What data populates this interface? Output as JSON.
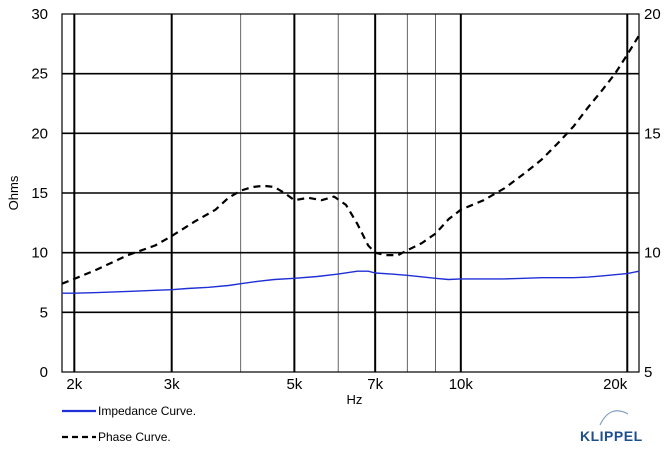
{
  "chart_data": {
    "type": "line",
    "title": "",
    "xlabel": "Hz",
    "ylabel": "Ohms",
    "x_scale": "log",
    "xlim": [
      1900,
      21000
    ],
    "ylim": [
      0,
      30
    ],
    "y2lim": [
      5,
      20
    ],
    "grid": true,
    "x_ticks": [
      {
        "value": 2000,
        "label": "2k"
      },
      {
        "value": 3000,
        "label": "3k"
      },
      {
        "value": 5000,
        "label": "5k"
      },
      {
        "value": 7000,
        "label": "7k"
      },
      {
        "value": 10000,
        "label": "10k"
      },
      {
        "value": 20000,
        "label": "20k"
      }
    ],
    "y_ticks": [
      {
        "value": 0,
        "label": "0"
      },
      {
        "value": 5,
        "label": "5"
      },
      {
        "value": 10,
        "label": "10"
      },
      {
        "value": 15,
        "label": "15"
      },
      {
        "value": 20,
        "label": "20"
      },
      {
        "value": 25,
        "label": "25"
      },
      {
        "value": 30,
        "label": "30"
      }
    ],
    "y2_ticks": [
      {
        "value": 5,
        "label": "5"
      },
      {
        "value": 10,
        "label": "10"
      },
      {
        "value": 15,
        "label": "15"
      },
      {
        "value": 20,
        "label": "20"
      }
    ],
    "series": [
      {
        "name": "Impedance Curve.",
        "axis": "left",
        "color": "#1f2fd6",
        "style": "solid",
        "x": [
          1900,
          2000,
          2200,
          2500,
          2800,
          3000,
          3200,
          3500,
          3800,
          4000,
          4300,
          4600,
          5000,
          5500,
          6000,
          6500,
          6800,
          7000,
          7500,
          8000,
          9000,
          9500,
          10000,
          11000,
          12000,
          13000,
          14000,
          15000,
          16000,
          17000,
          18000,
          19000,
          20000,
          21000
        ],
        "y": [
          6.6,
          6.6,
          6.65,
          6.75,
          6.85,
          6.9,
          7.0,
          7.1,
          7.25,
          7.4,
          7.6,
          7.75,
          7.85,
          8.0,
          8.2,
          8.45,
          8.45,
          8.3,
          8.2,
          8.1,
          7.85,
          7.75,
          7.8,
          7.8,
          7.8,
          7.85,
          7.9,
          7.9,
          7.9,
          7.95,
          8.05,
          8.15,
          8.25,
          8.45
        ]
      },
      {
        "name": "Phase Curve.",
        "axis": "right",
        "color": "#000000",
        "style": "dashed",
        "x": [
          1900,
          2000,
          2200,
          2500,
          2800,
          3000,
          3300,
          3600,
          3800,
          4000,
          4200,
          4400,
          4600,
          4800,
          5000,
          5300,
          5600,
          5900,
          6200,
          6500,
          6800,
          7000,
          7300,
          7700,
          8000,
          8500,
          9000,
          9500,
          10000,
          11000,
          12000,
          13000,
          14000,
          15000,
          16000,
          17000,
          18000,
          19000,
          20000,
          21000
        ],
        "y": [
          8.7,
          8.9,
          9.3,
          9.9,
          10.3,
          10.7,
          11.3,
          11.8,
          12.3,
          12.6,
          12.75,
          12.8,
          12.75,
          12.5,
          12.2,
          12.3,
          12.2,
          12.35,
          12.0,
          11.2,
          10.3,
          10.0,
          9.9,
          9.9,
          10.1,
          10.4,
          10.8,
          11.4,
          11.8,
          12.2,
          12.7,
          13.3,
          13.9,
          14.6,
          15.3,
          16.1,
          16.8,
          17.5,
          18.3,
          19.1
        ]
      }
    ]
  },
  "legend": {
    "impedance_label": "Impedance Curve.",
    "phase_label": "Phase Curve."
  },
  "brand": {
    "name": "KLIPPEL",
    "color": "#1f4e8c"
  }
}
